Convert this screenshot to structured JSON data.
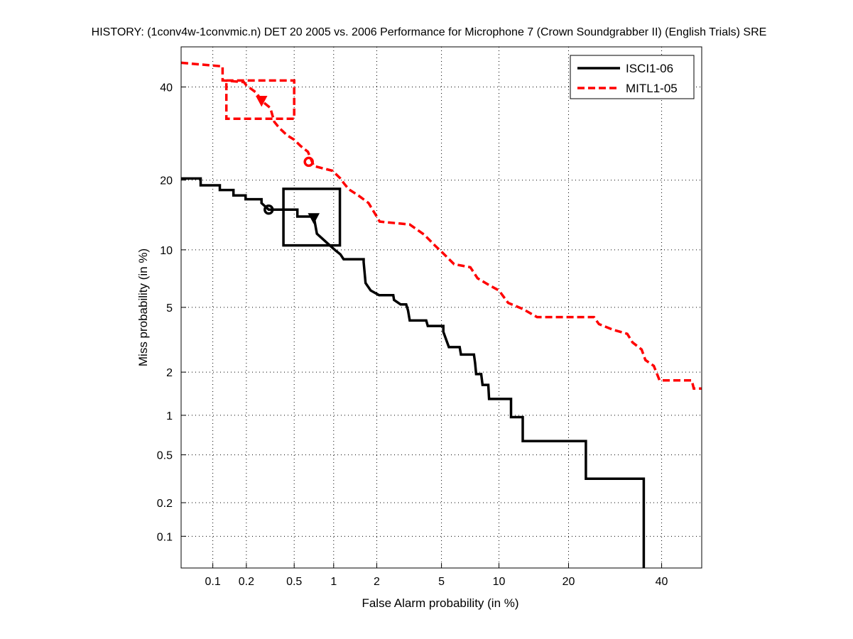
{
  "chart_data": {
    "type": "line",
    "scale": "normal-deviate (DET)",
    "title": "HISTORY: (1conv4w-1convmic.n) DET 20 2005 vs. 2006 Performance for Microphone 7 (Crown Soundgrabber II) (English Trials) SRE",
    "xlabel": "False Alarm probability (in %)",
    "ylabel": "Miss probability (in %)",
    "xlim": [
      0.05,
      50
    ],
    "ylim": [
      0.05,
      50
    ],
    "xticks": [
      0.1,
      0.2,
      0.5,
      1,
      2,
      5,
      10,
      20,
      40
    ],
    "xtick_labels": [
      "0.1",
      "0.2",
      "0.5",
      "1",
      "2",
      "5",
      "10",
      "20",
      "40"
    ],
    "yticks": [
      0.1,
      0.2,
      0.5,
      1,
      2,
      5,
      10,
      20,
      40
    ],
    "ytick_labels": [
      "0.1",
      "0.2",
      "0.5",
      "1",
      "2",
      "5",
      "10",
      "20",
      "40"
    ],
    "grid": true,
    "legend_position": "top-right",
    "series": [
      {
        "name": "ISCI1-06",
        "color": "#000000",
        "style": "solid",
        "points": [
          [
            0.05,
            20.3
          ],
          [
            0.077,
            20.3
          ],
          [
            0.077,
            19.1
          ],
          [
            0.116,
            19.1
          ],
          [
            0.116,
            18.3
          ],
          [
            0.154,
            18.3
          ],
          [
            0.154,
            17.4
          ],
          [
            0.197,
            17.4
          ],
          [
            0.197,
            16.8
          ],
          [
            0.27,
            16.8
          ],
          [
            0.27,
            16.2
          ],
          [
            0.31,
            15.2
          ],
          [
            0.53,
            15.2
          ],
          [
            0.53,
            14.2
          ],
          [
            0.71,
            14.2
          ],
          [
            0.75,
            11.9
          ],
          [
            1.02,
            10.0
          ],
          [
            1.12,
            9.5
          ],
          [
            1.18,
            9.0
          ],
          [
            1.63,
            9.0
          ],
          [
            1.63,
            8.7
          ],
          [
            1.68,
            6.8
          ],
          [
            1.82,
            6.2
          ],
          [
            2.07,
            5.85
          ],
          [
            2.56,
            5.85
          ],
          [
            2.59,
            5.5
          ],
          [
            2.85,
            5.2
          ],
          [
            3.09,
            5.2
          ],
          [
            3.17,
            4.8
          ],
          [
            3.25,
            4.2
          ],
          [
            4.08,
            4.2
          ],
          [
            4.17,
            3.9
          ],
          [
            5.12,
            3.9
          ],
          [
            5.12,
            3.6
          ],
          [
            5.5,
            2.9
          ],
          [
            6.3,
            2.9
          ],
          [
            6.4,
            2.6
          ],
          [
            7.5,
            2.6
          ],
          [
            7.6,
            2.3
          ],
          [
            7.7,
            1.94
          ],
          [
            8.17,
            1.94
          ],
          [
            8.3,
            1.64
          ],
          [
            8.87,
            1.64
          ],
          [
            8.95,
            1.31
          ],
          [
            11.4,
            1.31
          ],
          [
            11.4,
            0.97
          ],
          [
            12.9,
            0.97
          ],
          [
            12.9,
            0.64
          ],
          [
            23.2,
            0.64
          ],
          [
            23.2,
            0.32
          ],
          [
            35.7,
            0.32
          ],
          [
            35.7,
            0.05
          ]
        ],
        "min_dcf_point": [
          0.31,
          15.2
        ],
        "actual_dcf_point": [
          0.71,
          14.0
        ],
        "confidence_box": {
          "x": [
            0.41,
            1.11
          ],
          "y": [
            10.5,
            18.5
          ]
        }
      },
      {
        "name": "MITL1-05",
        "color": "#ff0000",
        "style": "dashed",
        "points": [
          [
            0.05,
            46.0
          ],
          [
            0.123,
            45.1
          ],
          [
            0.123,
            41.6
          ],
          [
            0.19,
            41.2
          ],
          [
            0.2,
            40.4
          ],
          [
            0.244,
            38.6
          ],
          [
            0.27,
            36.7
          ],
          [
            0.32,
            35.0
          ],
          [
            0.345,
            31.8
          ],
          [
            0.38,
            30.4
          ],
          [
            0.44,
            28.8
          ],
          [
            0.5,
            27.9
          ],
          [
            0.56,
            26.6
          ],
          [
            0.64,
            25.4
          ],
          [
            0.71,
            22.6
          ],
          [
            0.98,
            21.7
          ],
          [
            1.11,
            20.4
          ],
          [
            1.19,
            19.4
          ],
          [
            1.29,
            18.4
          ],
          [
            1.5,
            17.4
          ],
          [
            1.76,
            16.2
          ],
          [
            1.96,
            14.5
          ],
          [
            2.09,
            13.5
          ],
          [
            3.25,
            13.1
          ],
          [
            3.96,
            11.8
          ],
          [
            4.58,
            10.5
          ],
          [
            5.12,
            9.6
          ],
          [
            5.88,
            8.5
          ],
          [
            7.18,
            8.2
          ],
          [
            7.83,
            7.2
          ],
          [
            9.0,
            6.6
          ],
          [
            10.0,
            6.2
          ],
          [
            11.06,
            5.3
          ],
          [
            12.9,
            4.9
          ],
          [
            14.9,
            4.4
          ],
          [
            24.8,
            4.4
          ],
          [
            25.8,
            4.0
          ],
          [
            28.8,
            3.7
          ],
          [
            31.9,
            3.5
          ],
          [
            33.1,
            3.1
          ],
          [
            35.2,
            2.8
          ],
          [
            36.1,
            2.4
          ],
          [
            38.1,
            2.2
          ],
          [
            39.5,
            1.76
          ],
          [
            47.5,
            1.76
          ],
          [
            48,
            1.55
          ],
          [
            50,
            1.55
          ]
        ],
        "min_dcf_point": [
          0.65,
          23.4
        ],
        "actual_dcf_point": [
          0.27,
          36.7
        ],
        "confidence_box": {
          "x": [
            0.133,
            0.5
          ],
          "y": [
            32.5,
            41.6
          ]
        }
      }
    ]
  }
}
